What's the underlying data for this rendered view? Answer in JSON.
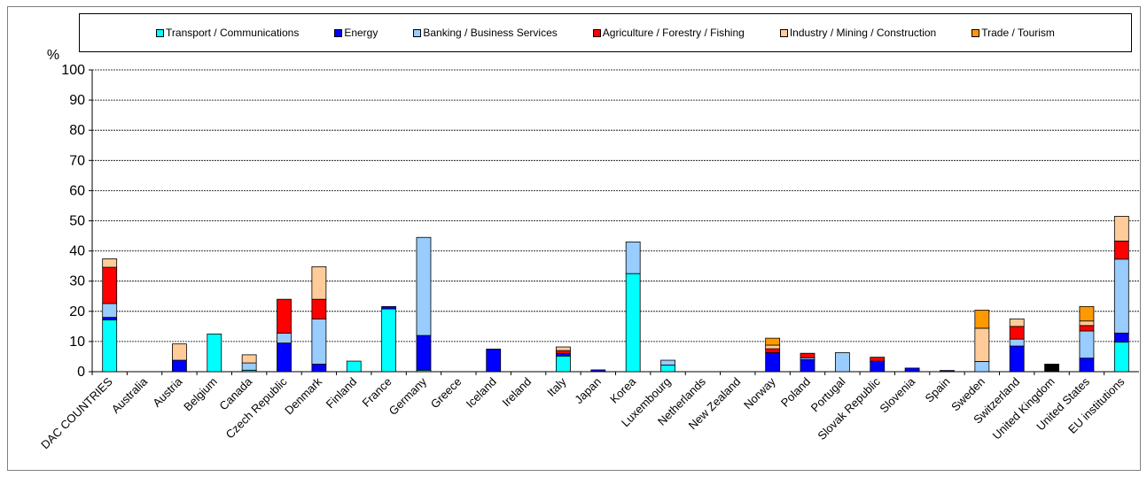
{
  "chart_data": {
    "type": "bar",
    "stacked": true,
    "title": "",
    "xlabel": "",
    "ylabel": "%",
    "ylim": [
      0,
      100
    ],
    "yticks": [
      0,
      10,
      20,
      30,
      40,
      50,
      60,
      70,
      80,
      90,
      100
    ],
    "grid": true,
    "legend_position": "top",
    "categories": [
      "DAC COUNTRIES",
      "Australia",
      "Austria",
      "Belgium",
      "Canada",
      "Czech Republic",
      "Denmark",
      "Finland",
      "France",
      "Germany",
      "Greece",
      "Iceland",
      "Ireland",
      "Italy",
      "Japan",
      "Korea",
      "Luxembourg",
      "Netherlands",
      "New Zealand",
      "Norway",
      "Poland",
      "Portugal",
      "Slovak Republic",
      "Slovenia",
      "Spain",
      "Sweden",
      "Switzerland",
      "United Kingdom",
      "United States",
      "EU institutions"
    ],
    "series": [
      {
        "name": "Transport / Communications",
        "color": "#00ffff",
        "values": [
          17.2,
          0,
          0,
          12.5,
          0.5,
          0,
          0,
          3.5,
          20.8,
          0.5,
          0,
          0,
          0,
          5.2,
          0,
          32.5,
          2.2,
          0,
          0,
          0,
          0,
          0,
          0,
          0,
          0,
          0,
          0,
          0,
          0,
          9.8
        ]
      },
      {
        "name": "Energy",
        "color": "#0000ff",
        "values": [
          0.8,
          0,
          3.8,
          0,
          0,
          9.5,
          2.5,
          0,
          0.8,
          11.5,
          0,
          7.5,
          0,
          0.8,
          0.6,
          0,
          0,
          0,
          0,
          6.3,
          4.0,
          0,
          3.5,
          1.2,
          0.4,
          0,
          8.5,
          0,
          4.5,
          3.0
        ]
      },
      {
        "name": "Banking / Business Services",
        "color": "#99ccff",
        "values": [
          4.6,
          0,
          0,
          0,
          2.4,
          3.3,
          15.0,
          0,
          0,
          32.5,
          0,
          0,
          0,
          0,
          0,
          10.5,
          1.6,
          0,
          0,
          0,
          0.6,
          6.3,
          0,
          0,
          0,
          3.4,
          2.3,
          0,
          9.0,
          24.5
        ]
      },
      {
        "name": "Agriculture / Forestry / Fishing",
        "color": "#ff0000",
        "values": [
          12.0,
          0,
          0,
          0,
          0,
          11.2,
          6.5,
          0,
          0,
          0,
          0,
          0,
          0,
          1.0,
          0,
          0,
          0,
          0,
          0,
          1.3,
          1.5,
          0,
          1.3,
          0,
          0,
          0,
          4.2,
          0,
          1.8,
          6.0
        ]
      },
      {
        "name": "Industry / Mining / Construction",
        "color": "#ffcc99",
        "values": [
          2.8,
          0,
          5.4,
          0,
          2.7,
          0,
          10.8,
          0,
          0,
          0,
          0,
          0,
          0,
          1.2,
          0,
          0,
          0,
          0,
          0,
          1.2,
          0,
          0,
          0,
          0,
          0,
          11.0,
          2.5,
          0,
          1.5,
          8.2
        ]
      },
      {
        "name": "Trade / Tourism",
        "color": "#ff9900",
        "values": [
          0,
          0,
          0,
          0,
          0,
          0,
          0,
          0,
          0,
          0,
          0,
          0,
          0,
          0,
          0,
          0,
          0,
          0,
          0,
          2.3,
          0,
          0,
          0,
          0,
          0,
          6.0,
          0,
          0,
          4.8,
          0
        ]
      },
      {
        "color": "#000000",
        "values": [
          0,
          0,
          0,
          0,
          0,
          0,
          0,
          0,
          0,
          0,
          0,
          0,
          0,
          0,
          0,
          0,
          0,
          0,
          0,
          0,
          0,
          0,
          0,
          0,
          0,
          0,
          0,
          2.5,
          0,
          0
        ]
      }
    ]
  }
}
